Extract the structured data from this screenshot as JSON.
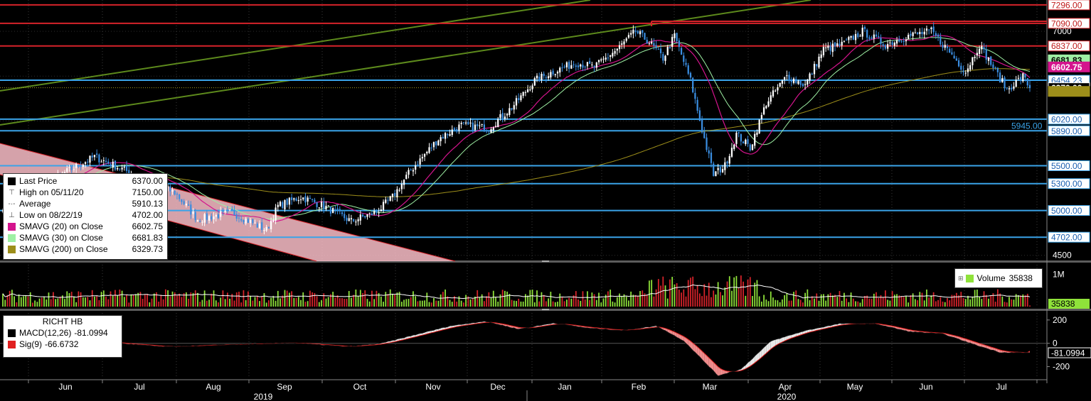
{
  "chart_data": {
    "type": "candlestick",
    "instrument_label": "RICHT HB",
    "price_panel": {
      "ylim": [
        4450,
        7350
      ],
      "y_ticks": [
        7000,
        4500
      ],
      "y_tick_labels": [
        "7000",
        "4500"
      ],
      "horizontal_levels": [
        {
          "value": 7296,
          "label": "7296.00",
          "color": "#d6232a"
        },
        {
          "value": 7090,
          "label": "7090.00",
          "color": "#d6232a"
        },
        {
          "value": 6837,
          "label": "6837.00",
          "color": "#d6232a"
        },
        {
          "value": 6454.23,
          "label": "6454.23",
          "color": "#3aa3e8"
        },
        {
          "value": 6020,
          "label": "6020.00",
          "color": "#3aa3e8"
        },
        {
          "value": 5890,
          "label": "5890.00",
          "color": "#3aa3e8"
        },
        {
          "value": 5500,
          "label": "5500.00",
          "color": "#3aa3e8"
        },
        {
          "value": 5300,
          "label": "5300.00",
          "color": "#3aa3e8"
        },
        {
          "value": 5000,
          "label": "5000.00",
          "color": "#3aa3e8"
        },
        {
          "value": 4702,
          "label": "4702.00",
          "color": "#3aa3e8"
        }
      ],
      "badges": [
        {
          "value": 6681.83,
          "label": "6681.83",
          "bg": "#9ef0a4",
          "fg": "#000"
        },
        {
          "value": 6602.75,
          "label": "6602.75",
          "bg": "#d4148d",
          "fg": "#fff"
        },
        {
          "value": 6370,
          "label": "6370.00",
          "bg": "#000",
          "fg": "#fff",
          "border": "#fff"
        },
        {
          "value": 6329.73,
          "label": "",
          "bg": "#9d8e1a",
          "fg": "#000"
        }
      ],
      "floating_label": {
        "value": 5945,
        "label": "5945.00",
        "color": "#3aa3e8"
      },
      "legend": {
        "entries": [
          {
            "name": "Last Price",
            "value": "6370.00",
            "swatch": "#000000",
            "kind": "swatch"
          },
          {
            "name": "High on 05/11/20",
            "value": "7150.00",
            "kind": "glyph",
            "glyph": "⊤"
          },
          {
            "name": "Average",
            "value": "5910.13",
            "kind": "glyph",
            "glyph": "-·-"
          },
          {
            "name": "Low on 08/22/19",
            "value": "4702.00",
            "kind": "glyph",
            "glyph": "⊥"
          },
          {
            "name": "SMAVG (20)  on Close",
            "value": "6602.75",
            "swatch": "#d4148d",
            "kind": "swatch"
          },
          {
            "name": "SMAVG (30)  on Close",
            "value": "6681.83",
            "swatch": "#9ef0a4",
            "kind": "swatch"
          },
          {
            "name": "SMAVG (200)  on Close",
            "value": "6329.73",
            "swatch": "#9d8e1a",
            "kind": "swatch"
          }
        ]
      },
      "series_colors": {
        "up": "#ffffff",
        "down": "#3a8de0",
        "sma20": "#d4148d",
        "sma30": "#9ef0a4",
        "sma200": "#9d8e1a",
        "trend": "#5d8a1c"
      }
    },
    "volume_panel": {
      "ylim": [
        0,
        1300000
      ],
      "y_tick_labels": [
        "1M"
      ],
      "legend_label": "Volume",
      "legend_value": "35838",
      "last_value_label": "35838",
      "up_color": "#8fe23a",
      "down_color": "#d6232a"
    },
    "macd_panel": {
      "ylim": [
        -300,
        260
      ],
      "y_ticks": [
        200,
        0,
        -200
      ],
      "y_tick_labels": [
        "200",
        "0",
        "-200"
      ],
      "legend": {
        "title": "RICHT HB",
        "entries": [
          {
            "name": "MACD(12,26)",
            "value": "-81.0994",
            "swatch": "#000000"
          },
          {
            "name": "Sig(9)",
            "value": "-66.6732",
            "swatch": "#e02020"
          }
        ]
      },
      "last_value_label": "-81.0994"
    },
    "x_axis": {
      "months": [
        "Jun",
        "Jul",
        "Aug",
        "Sep",
        "Oct",
        "Nov",
        "Dec",
        "Jan",
        "Feb",
        "Mar",
        "Apr",
        "May",
        "Jun",
        "Jul"
      ],
      "years": [
        "2019",
        "2020"
      ]
    },
    "anchors": [
      {
        "d": 0,
        "c": 5050
      },
      {
        "d": 40,
        "c": 5600
      },
      {
        "d": 75,
        "c": 5200
      },
      {
        "d": 85,
        "c": 4900
      },
      {
        "d": 100,
        "c": 4980
      },
      {
        "d": 115,
        "c": 4780
      },
      {
        "d": 120,
        "c": 5050
      },
      {
        "d": 130,
        "c": 5150
      },
      {
        "d": 140,
        "c": 5050
      },
      {
        "d": 152,
        "c": 4880
      },
      {
        "d": 156,
        "c": 4920
      },
      {
        "d": 163,
        "c": 4980
      },
      {
        "d": 170,
        "c": 5150
      },
      {
        "d": 178,
        "c": 5450
      },
      {
        "d": 190,
        "c": 5800
      },
      {
        "d": 200,
        "c": 5950
      },
      {
        "d": 212,
        "c": 5920
      },
      {
        "d": 222,
        "c": 6150
      },
      {
        "d": 232,
        "c": 6450
      },
      {
        "d": 240,
        "c": 6550
      },
      {
        "d": 250,
        "c": 6650
      },
      {
        "d": 258,
        "c": 6600
      },
      {
        "d": 268,
        "c": 6800
      },
      {
        "d": 276,
        "c": 7000
      },
      {
        "d": 282,
        "c": 6880
      },
      {
        "d": 288,
        "c": 6700
      },
      {
        "d": 293,
        "c": 6950
      },
      {
        "d": 300,
        "c": 6450
      },
      {
        "d": 305,
        "c": 5900
      },
      {
        "d": 310,
        "c": 5400
      },
      {
        "d": 315,
        "c": 5500
      },
      {
        "d": 320,
        "c": 5850
      },
      {
        "d": 326,
        "c": 5700
      },
      {
        "d": 333,
        "c": 6200
      },
      {
        "d": 342,
        "c": 6500
      },
      {
        "d": 350,
        "c": 6400
      },
      {
        "d": 358,
        "c": 6800
      },
      {
        "d": 366,
        "c": 6850
      },
      {
        "d": 375,
        "c": 7000
      },
      {
        "d": 385,
        "c": 6850
      },
      {
        "d": 395,
        "c": 6950
      },
      {
        "d": 405,
        "c": 7000
      },
      {
        "d": 412,
        "c": 6800
      },
      {
        "d": 420,
        "c": 6550
      },
      {
        "d": 426,
        "c": 6850
      },
      {
        "d": 432,
        "c": 6600
      },
      {
        "d": 438,
        "c": 6350
      },
      {
        "d": 445,
        "c": 6500
      },
      {
        "d": 448,
        "c": 6370
      }
    ],
    "macd_anchors": [
      {
        "d": 0,
        "m": 20
      },
      {
        "d": 20,
        "m": 60
      },
      {
        "d": 50,
        "m": 0
      },
      {
        "d": 70,
        "m": -30
      },
      {
        "d": 95,
        "m": -10
      },
      {
        "d": 125,
        "m": 5
      },
      {
        "d": 150,
        "m": -30
      },
      {
        "d": 165,
        "m": 0
      },
      {
        "d": 195,
        "m": 150
      },
      {
        "d": 210,
        "m": 190
      },
      {
        "d": 225,
        "m": 120
      },
      {
        "d": 240,
        "m": 175
      },
      {
        "d": 255,
        "m": 130
      },
      {
        "d": 270,
        "m": 110
      },
      {
        "d": 285,
        "m": 150
      },
      {
        "d": 297,
        "m": 20
      },
      {
        "d": 312,
        "m": -280
      },
      {
        "d": 322,
        "m": -220
      },
      {
        "d": 335,
        "m": 20
      },
      {
        "d": 350,
        "m": 110
      },
      {
        "d": 365,
        "m": 170
      },
      {
        "d": 380,
        "m": 170
      },
      {
        "d": 395,
        "m": 100
      },
      {
        "d": 410,
        "m": 80
      },
      {
        "d": 425,
        "m": -20
      },
      {
        "d": 435,
        "m": -80
      },
      {
        "d": 448,
        "m": -81
      }
    ]
  }
}
